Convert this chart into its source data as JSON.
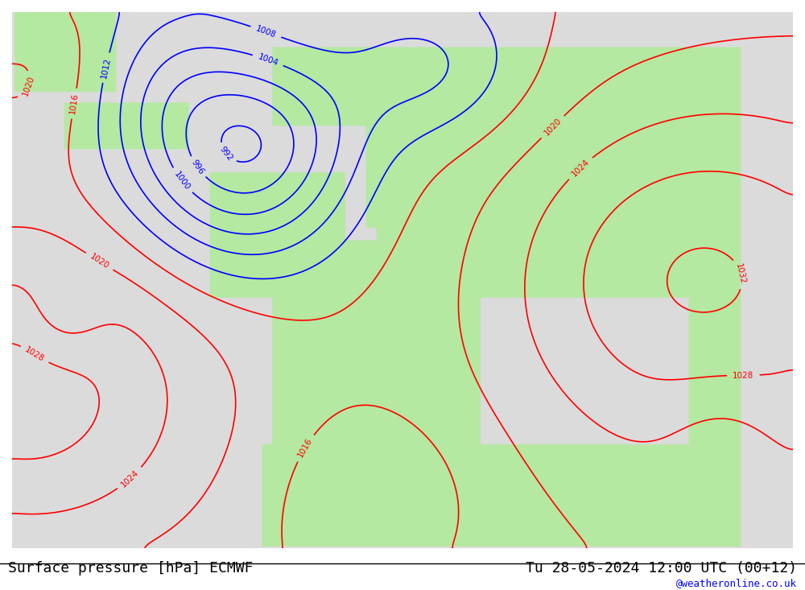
{
  "title_left": "Surface pressure [hPa] ECMWF",
  "title_right": "Tu 28-05-2024 12:00 UTC (00+12)",
  "copyright": "@weatheronline.co.uk",
  "bg_color": "#e8e8e8",
  "land_color": "#b5e8a0",
  "ocean_color": "#dcdcdc",
  "font_family": "monospace",
  "title_fontsize": 13,
  "copyright_fontsize": 9,
  "label_fontsize": 8
}
